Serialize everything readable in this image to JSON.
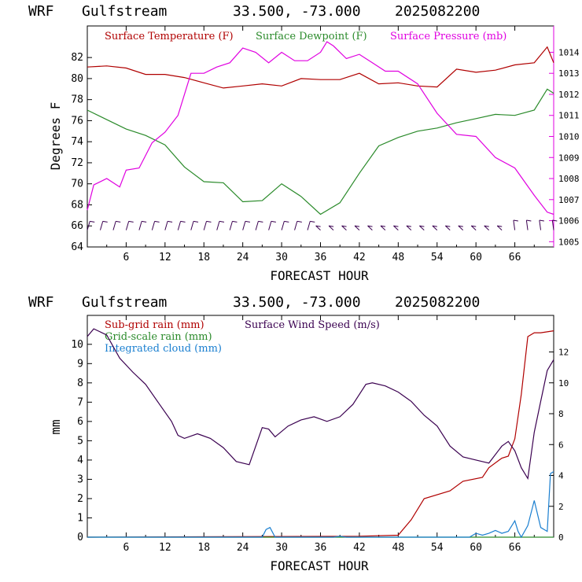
{
  "header": {
    "model": "WRF",
    "location": "Gulfstream",
    "coords": "33.500, -73.000",
    "date": "2025082200"
  },
  "colors": {
    "temperature": "#b00000",
    "dewpoint": "#2a8a2a",
    "pressure": "#e000e0",
    "wind": "#3a0050",
    "subgrid_rain": "#b00000",
    "gridscale_rain": "#2a8a2a",
    "cloud": "#1a7fd0"
  },
  "chart_data": [
    {
      "type": "line",
      "xlabel": "FORECAST HOUR",
      "ylabel": "Degrees F",
      "xlim": [
        0,
        72
      ],
      "ylim": [
        64,
        85
      ],
      "y2lim": [
        1004.75,
        1015.25
      ],
      "x_ticks": [
        "6",
        "12",
        "18",
        "24",
        "30",
        "36",
        "42",
        "48",
        "54",
        "60",
        "66"
      ],
      "y_ticks": [
        "64",
        "66",
        "68",
        "70",
        "72",
        "74",
        "76",
        "78",
        "80",
        "82"
      ],
      "y2_ticks": [
        "1005",
        "1006",
        "1007",
        "1008",
        "1009",
        "1010",
        "1011",
        "1012",
        "1013",
        "1014"
      ],
      "series": [
        {
          "name": "Surface Temperature (F)",
          "axis": "left",
          "x": [
            0,
            3,
            6,
            9,
            12,
            15,
            18,
            21,
            24,
            27,
            30,
            33,
            36,
            39,
            42,
            45,
            48,
            51,
            54,
            57,
            60,
            63,
            66,
            69,
            71,
            72
          ],
          "values": [
            81.1,
            81.2,
            81.0,
            80.4,
            80.4,
            80.1,
            79.6,
            79.1,
            79.3,
            79.5,
            79.3,
            80.0,
            79.9,
            79.9,
            80.5,
            79.5,
            79.6,
            79.3,
            79.2,
            80.9,
            80.6,
            80.8,
            81.3,
            81.5,
            83.0,
            81.5
          ]
        },
        {
          "name": "Surface Dewpoint (F)",
          "axis": "left",
          "x": [
            0,
            3,
            6,
            9,
            12,
            15,
            18,
            21,
            24,
            27,
            30,
            33,
            36,
            39,
            42,
            45,
            48,
            51,
            54,
            57,
            60,
            63,
            66,
            69,
            71,
            72
          ],
          "values": [
            77.0,
            76.1,
            75.2,
            74.6,
            73.7,
            71.6,
            70.2,
            70.1,
            68.3,
            68.4,
            70.0,
            68.8,
            67.1,
            68.2,
            71.0,
            73.6,
            74.4,
            75.0,
            75.3,
            75.8,
            76.2,
            76.6,
            76.5,
            77.0,
            79.0,
            78.6
          ]
        },
        {
          "name": "Surface Pressure (mb)",
          "axis": "right",
          "x": [
            0,
            1,
            3,
            5,
            6,
            8,
            10,
            12,
            14,
            16,
            18,
            20,
            22,
            24,
            26,
            28,
            30,
            32,
            34,
            36,
            37,
            38,
            40,
            42,
            44,
            46,
            48,
            51,
            54,
            57,
            60,
            63,
            66,
            69,
            71,
            72
          ],
          "values": [
            1006.5,
            1007.7,
            1008.0,
            1007.6,
            1008.4,
            1008.5,
            1009.7,
            1010.2,
            1011.0,
            1013.0,
            1013.0,
            1013.3,
            1013.5,
            1014.2,
            1014.0,
            1013.5,
            1014.0,
            1013.6,
            1013.6,
            1014.0,
            1014.5,
            1014.3,
            1013.7,
            1013.9,
            1013.5,
            1013.1,
            1013.1,
            1012.5,
            1011.1,
            1010.1,
            1010.0,
            1009.0,
            1008.5,
            1007.2,
            1006.4,
            1006.3
          ]
        },
        {
          "name": "Wind barbs",
          "type": "barbs",
          "y_level": 65.6,
          "x": [
            0,
            2,
            4,
            6,
            8,
            10,
            12,
            14,
            16,
            18,
            20,
            22,
            24,
            26,
            28,
            30,
            32,
            34,
            36,
            38,
            40,
            42,
            44,
            46,
            48,
            50,
            52,
            54,
            56,
            58,
            60,
            62,
            64,
            66,
            68,
            70,
            72
          ]
        }
      ]
    },
    {
      "type": "line",
      "xlabel": "FORECAST HOUR",
      "ylabel": "mm",
      "xlim": [
        0,
        72
      ],
      "ylim": [
        0,
        11.5
      ],
      "y2lim": [
        0,
        14.37
      ],
      "x_ticks": [
        "6",
        "12",
        "18",
        "24",
        "30",
        "36",
        "42",
        "48",
        "54",
        "60",
        "66"
      ],
      "y_ticks": [
        "0",
        "1",
        "2",
        "3",
        "4",
        "5",
        "6",
        "7",
        "8",
        "9",
        "10"
      ],
      "y2_ticks": [
        "0",
        "2",
        "4",
        "6",
        "8",
        "10",
        "12"
      ],
      "series": [
        {
          "name": "Sub-grid rain (mm)",
          "axis": "left",
          "x": [
            0,
            42,
            48,
            50,
            52,
            56,
            58,
            61,
            62,
            64,
            65,
            66,
            67,
            68,
            69,
            70,
            72
          ],
          "values": [
            0,
            0.05,
            0.1,
            0.9,
            2.0,
            2.4,
            2.9,
            3.1,
            3.6,
            4.1,
            4.2,
            5.1,
            7.4,
            10.4,
            10.6,
            10.6,
            10.7
          ]
        },
        {
          "name": "Grid-scale rain (mm)",
          "axis": "left",
          "x": [
            0,
            72
          ],
          "values": [
            0,
            0
          ]
        },
        {
          "name": "Integrated cloud (mm)",
          "axis": "left",
          "x": [
            0,
            27,
            27.6,
            28.2,
            29,
            38,
            39,
            40,
            59,
            60,
            61,
            62,
            63,
            64,
            65,
            66,
            66.5,
            67,
            68,
            69,
            70,
            71,
            71.5,
            72
          ],
          "values": [
            0,
            0,
            0.4,
            0.5,
            0,
            0,
            0.05,
            0,
            0,
            0.2,
            0.1,
            0.2,
            0.35,
            0.2,
            0.3,
            0.85,
            0.3,
            0,
            0.6,
            1.9,
            0.5,
            0.3,
            3.3,
            3.4
          ]
        },
        {
          "name": "Surface Wind Speed (m/s)",
          "axis": "right",
          "x": [
            0,
            1,
            3,
            5,
            7,
            9,
            11,
            13,
            14,
            15,
            17,
            19,
            21,
            23,
            25,
            27,
            28,
            29,
            31,
            33,
            35,
            37,
            39,
            41,
            43,
            44,
            46,
            48,
            50,
            52,
            54,
            56,
            58,
            60,
            62,
            64,
            65,
            66,
            67,
            68,
            69,
            70,
            71,
            72
          ],
          "values": [
            13,
            13.5,
            13.1,
            11.6,
            10.7,
            9.9,
            8.7,
            7.5,
            6.6,
            6.4,
            6.7,
            6.4,
            5.8,
            4.9,
            4.7,
            7.1,
            7.0,
            6.5,
            7.2,
            7.6,
            7.8,
            7.5,
            7.8,
            8.6,
            9.9,
            10.0,
            9.8,
            9.4,
            8.8,
            7.9,
            7.2,
            5.9,
            5.2,
            5.0,
            4.8,
            5.9,
            6.2,
            5.6,
            4.5,
            3.8,
            6.8,
            8.8,
            10.8,
            11.5
          ]
        }
      ]
    }
  ]
}
